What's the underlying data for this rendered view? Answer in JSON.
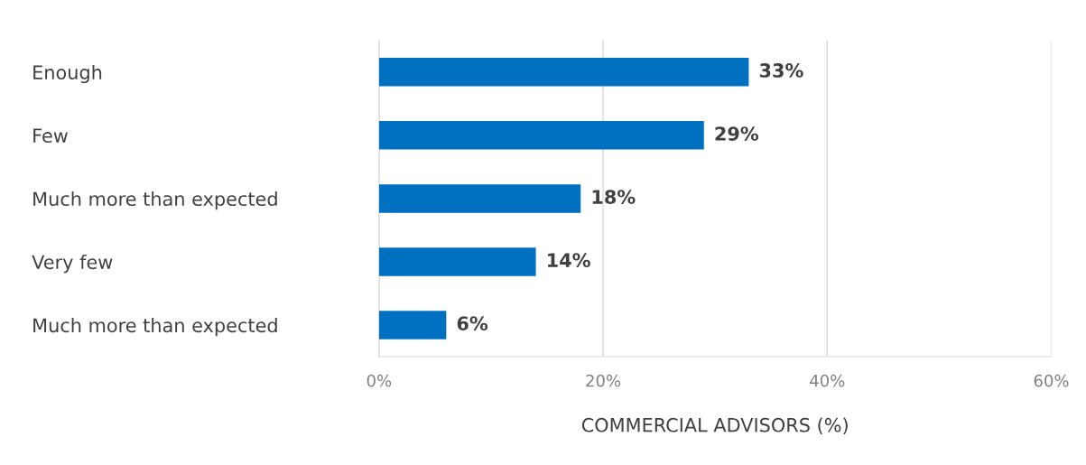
{
  "chart_data": {
    "type": "bar",
    "orientation": "horizontal",
    "xlabel": "COMMERCIAL ADVISORS (%)",
    "categories": [
      "Enough",
      "Few",
      "Much more than expected",
      "Very few",
      "Much more than expected"
    ],
    "values": [
      33,
      29,
      18,
      14,
      6
    ],
    "value_labels": [
      "33%",
      "29%",
      "18%",
      "14%",
      "6%"
    ],
    "color": "#0070c0",
    "xlim": [
      0,
      60
    ],
    "xticks": [
      {
        "value": 0,
        "label": "0%"
      },
      {
        "value": 20,
        "label": "20%"
      },
      {
        "value": 40,
        "label": "40%"
      },
      {
        "value": 60,
        "label": "60%"
      }
    ],
    "grid": "x"
  }
}
